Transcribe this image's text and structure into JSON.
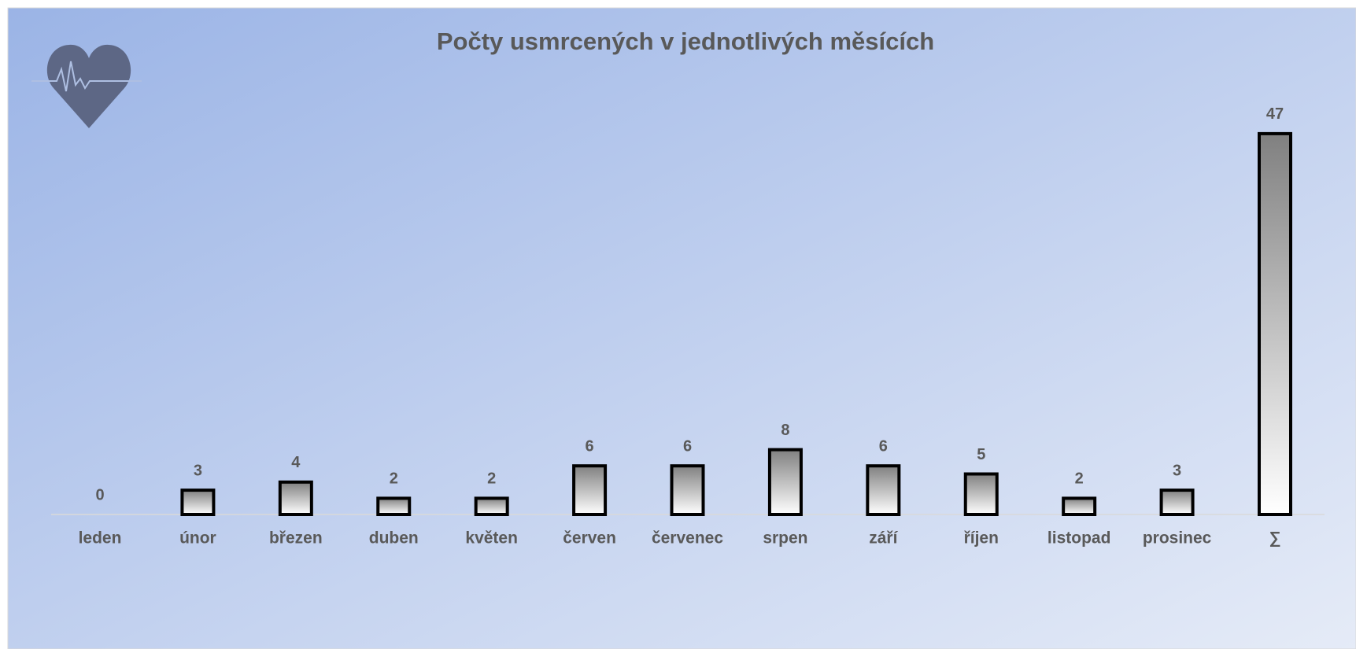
{
  "chart_data": {
    "type": "bar",
    "title": "Počty usmrcených v jednotlivých měsících",
    "categories": [
      "leden",
      "únor",
      "březen",
      "duben",
      "květen",
      "červen",
      "červenec",
      "srpen",
      "září",
      "říjen",
      "listopad",
      "prosinec",
      "∑"
    ],
    "values": [
      0,
      3,
      4,
      2,
      2,
      6,
      6,
      8,
      6,
      5,
      2,
      3,
      47
    ],
    "color": "#808080",
    "ylim": [
      0,
      50
    ]
  }
}
